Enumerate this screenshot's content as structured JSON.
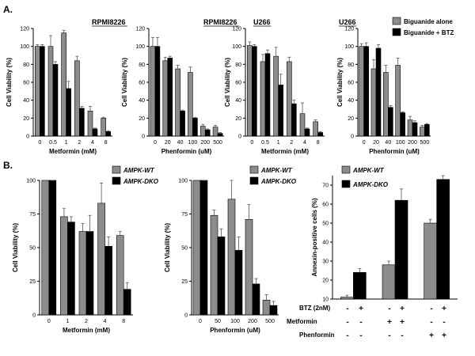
{
  "colors": {
    "gray": "#8c8c8c",
    "black": "#000000",
    "error": "#555555"
  },
  "panels": {
    "a": "A.",
    "b": "B."
  },
  "axis_labels": {
    "viability": "Cell Viability (%)",
    "annexin": "Annexin-positive cells (%)",
    "metformin_mM": "Metformin (mM)",
    "phenformin_uM": "Phenformin (uM)"
  },
  "legend": {
    "biguanide_alone": "Biguanide alone",
    "biguanide_btz": "Biguanide + BTZ",
    "ampk_wt": "AMPK-WT",
    "ampk_dko": "AMPK-DKO"
  },
  "treatment_table": {
    "rows": [
      {
        "label": "BTZ (2nM)",
        "signs": [
          "-",
          "+",
          "-",
          "+",
          "-",
          "+"
        ]
      },
      {
        "label": "Metformin",
        "signs": [
          "-",
          "-",
          "+",
          "+",
          "-",
          "-"
        ]
      },
      {
        "label": "Phenformin",
        "signs": [
          "-",
          "-",
          "-",
          "-",
          "+",
          "+"
        ]
      }
    ]
  },
  "chart_data": [
    {
      "id": "a1",
      "type": "bar",
      "title": "RPMI8226",
      "xlabel": "Metformin (mM)",
      "ylabel": "Cell Viability (%)",
      "ylim": [
        0,
        120
      ],
      "yticks": [
        0,
        20,
        40,
        60,
        80,
        100,
        120
      ],
      "categories": [
        "0",
        "0.5",
        "1",
        "2",
        "4",
        "8"
      ],
      "series": [
        {
          "name": "Biguanide alone",
          "values": [
            100,
            100,
            115,
            84,
            28,
            20
          ],
          "errors": [
            2,
            12,
            3,
            5,
            5,
            1
          ]
        },
        {
          "name": "Biguanide + BTZ",
          "values": [
            100,
            80,
            53,
            31,
            8,
            5
          ],
          "errors": [
            2,
            3,
            8,
            2,
            1,
            1
          ]
        }
      ]
    },
    {
      "id": "a2",
      "type": "bar",
      "title": "RPMI8226",
      "xlabel": "Phenformin (uM)",
      "ylabel": "Cell Viability (%)",
      "ylim": [
        0,
        120
      ],
      "yticks": [
        0,
        20,
        40,
        60,
        80,
        100,
        120
      ],
      "categories": [
        "0",
        "20",
        "40",
        "100",
        "200",
        "500"
      ],
      "series": [
        {
          "name": "Biguanide alone",
          "values": [
            100,
            84,
            75,
            71,
            11,
            10
          ],
          "errors": [
            10,
            4,
            4,
            6,
            2,
            2
          ]
        },
        {
          "name": "Biguanide + BTZ",
          "values": [
            100,
            87,
            28,
            20,
            7,
            3
          ],
          "errors": [
            10,
            2,
            1,
            1,
            1,
            1
          ]
        }
      ]
    },
    {
      "id": "a3",
      "type": "bar",
      "title": "U266",
      "xlabel": "Metformin (mM)",
      "ylabel": "Cell Viability (%)",
      "ylim": [
        0,
        120
      ],
      "yticks": [
        0,
        20,
        40,
        60,
        80,
        100,
        120
      ],
      "categories": [
        "0",
        "0.5",
        "1",
        "2",
        "4",
        "8"
      ],
      "series": [
        {
          "name": "Biguanide alone",
          "values": [
            101,
            83,
            89,
            83,
            25,
            16
          ],
          "errors": [
            4,
            8,
            10,
            5,
            12,
            2
          ]
        },
        {
          "name": "Biguanide + BTZ",
          "values": [
            100,
            92,
            57,
            36,
            8,
            4
          ],
          "errors": [
            2,
            4,
            12,
            4,
            1,
            1
          ]
        }
      ]
    },
    {
      "id": "a4",
      "type": "bar",
      "title": "U266",
      "xlabel": "Phenformin (uM)",
      "ylabel": "Cell Viability (%)",
      "ylim": [
        0,
        120
      ],
      "yticks": [
        0,
        20,
        40,
        60,
        80,
        100,
        120
      ],
      "categories": [
        "0",
        "20",
        "40",
        "100",
        "200",
        "500"
      ],
      "legend": "top-right",
      "series": [
        {
          "name": "Biguanide alone",
          "values": [
            100,
            75,
            71,
            79,
            18,
            10
          ],
          "errors": [
            3,
            10,
            8,
            8,
            4,
            2
          ]
        },
        {
          "name": "Biguanide + BTZ",
          "values": [
            100,
            98,
            32,
            26,
            15,
            13
          ],
          "errors": [
            4,
            4,
            2,
            1,
            2,
            1
          ]
        }
      ]
    },
    {
      "id": "b1",
      "type": "bar",
      "xlabel": "Metformin (mM)",
      "ylabel": "Cell Viability (%)",
      "ylim": [
        0,
        100
      ],
      "yticks": [
        0,
        25,
        50,
        75,
        100
      ],
      "categories": [
        "0",
        "1",
        "2",
        "4",
        "8"
      ],
      "legend": "top",
      "series": [
        {
          "name": "AMPK-WT",
          "values": [
            100,
            73,
            62,
            83,
            59
          ],
          "errors": [
            4,
            6,
            6,
            15,
            3
          ]
        },
        {
          "name": "AMPK-DKO",
          "values": [
            100,
            69,
            62,
            51,
            19
          ],
          "errors": [
            4,
            4,
            12,
            7,
            5
          ]
        }
      ]
    },
    {
      "id": "b2",
      "type": "bar",
      "xlabel": "Phenformin (uM)",
      "ylabel": "Cell Viability (%)",
      "ylim": [
        0,
        100
      ],
      "yticks": [
        0,
        25,
        50,
        75,
        100
      ],
      "categories": [
        "0",
        "50",
        "100",
        "200",
        "500"
      ],
      "legend": "top",
      "series": [
        {
          "name": "AMPK-WT",
          "values": [
            100,
            74,
            86,
            71,
            11
          ],
          "errors": [
            4,
            4,
            14,
            11,
            4
          ]
        },
        {
          "name": "AMPK-DKO",
          "values": [
            100,
            58,
            48,
            23,
            7
          ],
          "errors": [
            4,
            6,
            10,
            4,
            3
          ]
        }
      ]
    },
    {
      "id": "b3",
      "type": "bar",
      "ylabel": "Annexin-positive cells (%)",
      "ylim": [
        10,
        75
      ],
      "yticks": [
        10,
        20,
        30,
        40,
        50,
        60,
        70
      ],
      "legend": "top-left",
      "groups": 3,
      "series": [
        {
          "name": "AMPK-WT",
          "values": [
            11,
            28,
            50
          ],
          "errors": [
            1,
            2,
            2
          ]
        },
        {
          "name": "AMPK-DKO",
          "values": [
            24,
            62,
            73
          ],
          "errors": [
            2,
            6,
            3
          ]
        }
      ]
    }
  ]
}
